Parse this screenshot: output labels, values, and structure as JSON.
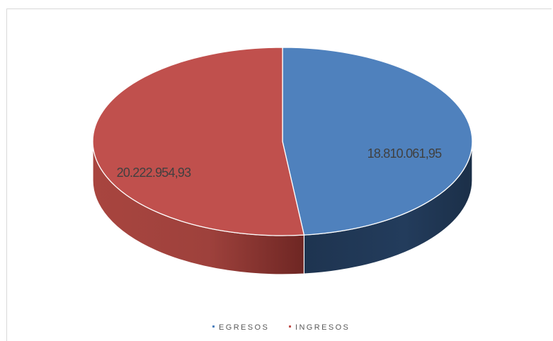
{
  "chart_data": {
    "type": "pie",
    "title": "",
    "categories": [
      "EGRESOS",
      "INGRESOS"
    ],
    "values": [
      18810061.95,
      20222954.93
    ],
    "data_labels": [
      "18.810.061,95",
      "20.222.954,93"
    ],
    "colors": {
      "EGRESOS": "#4F81BD",
      "INGRESOS": "#C0504D",
      "EGRESOS_side": "#1F3552",
      "INGRESOS_side": "#8B3532"
    },
    "legend": {
      "placement": "bottom",
      "entries": [
        "EGRESOS",
        "INGRESOS"
      ]
    },
    "style": "3d"
  }
}
